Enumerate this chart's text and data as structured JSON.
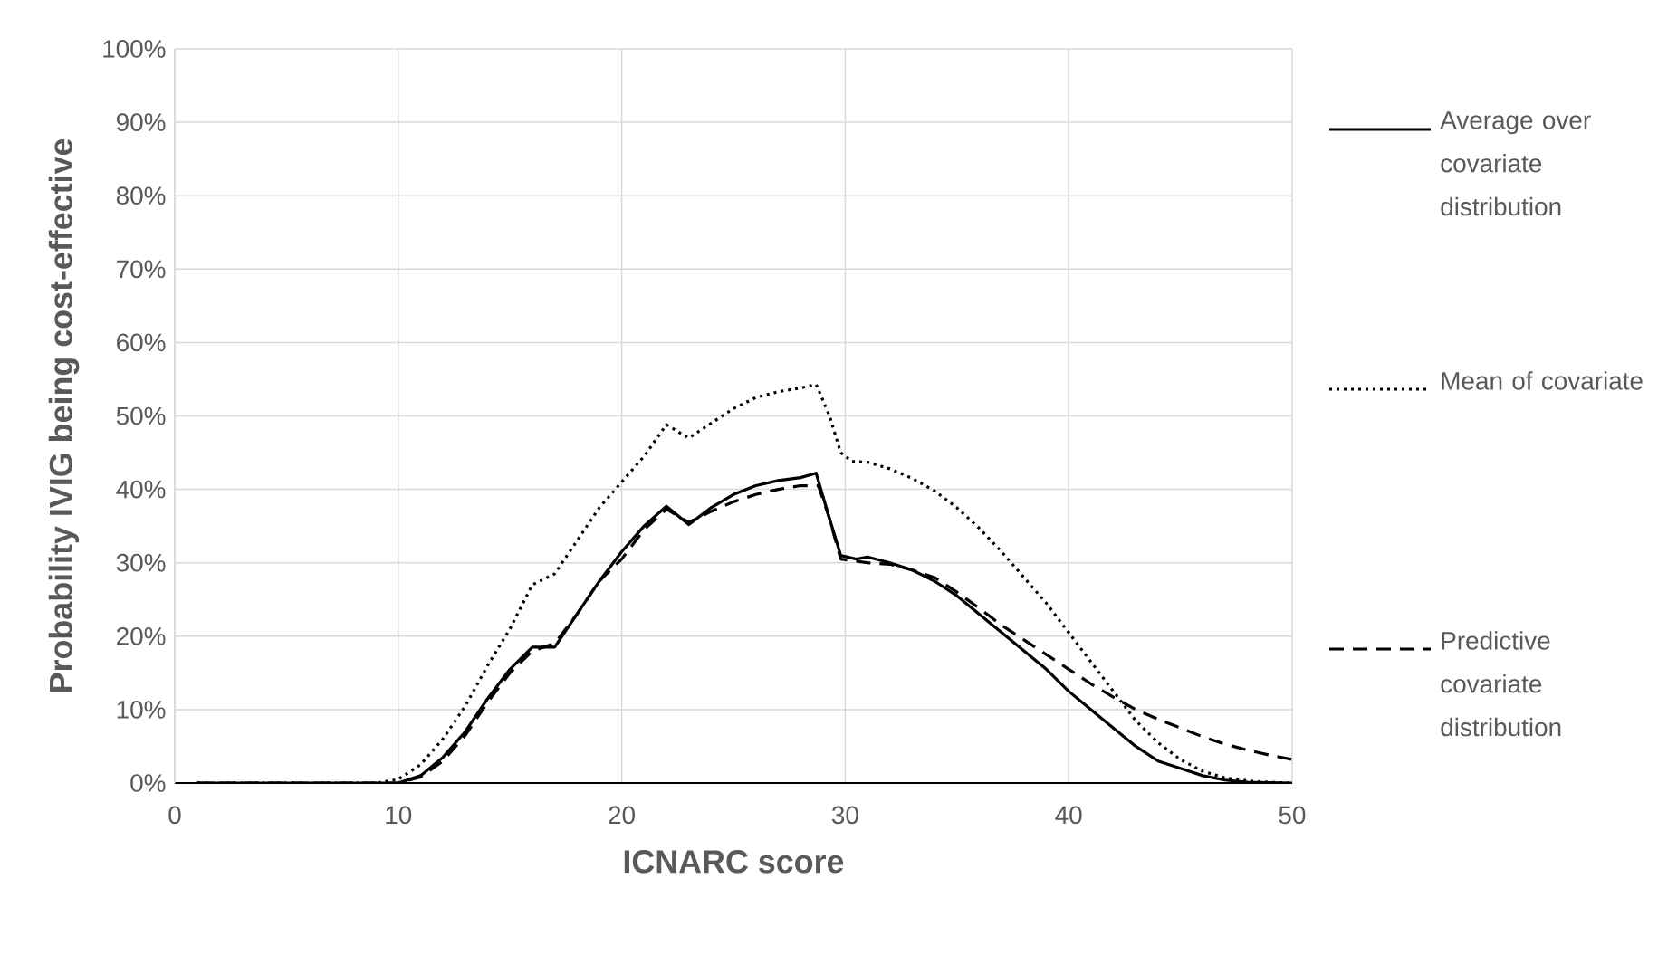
{
  "chart_data": {
    "type": "line",
    "xlabel": "ICNARC score",
    "ylabel": "Probability IVIG being cost-effective",
    "xlim": [
      0,
      50
    ],
    "xticks": [
      0,
      10,
      20,
      30,
      40,
      50
    ],
    "ylim": [
      0,
      100
    ],
    "yticks": [
      {
        "value": 0,
        "label": "0%"
      },
      {
        "value": 10,
        "label": "10%"
      },
      {
        "value": 20,
        "label": "20%"
      },
      {
        "value": 30,
        "label": "30%"
      },
      {
        "value": 40,
        "label": "40%"
      },
      {
        "value": 50,
        "label": "50%"
      },
      {
        "value": 60,
        "label": "60%"
      },
      {
        "value": 70,
        "label": "70%"
      },
      {
        "value": 80,
        "label": "80%"
      },
      {
        "value": 90,
        "label": "90%"
      },
      {
        "value": 100,
        "label": "100%"
      }
    ],
    "grid": true,
    "legend": "right",
    "marker": "none",
    "series": [
      {
        "name": "Average over covariate distribution",
        "color": "#000000",
        "line_style": "solid",
        "x": [
          1,
          9,
          10,
          11,
          12,
          13,
          14,
          15,
          16,
          17,
          18,
          19,
          20,
          21,
          22,
          23,
          24,
          25,
          26,
          27,
          28,
          28.7,
          29.3,
          29.8,
          30.5,
          31,
          32,
          33,
          34,
          35,
          36,
          37,
          38,
          39,
          40,
          41,
          42,
          43,
          44,
          45,
          46,
          47,
          48,
          50
        ],
        "values": [
          0,
          0,
          0,
          1,
          3.5,
          7,
          11.5,
          15.5,
          18.5,
          18.5,
          23,
          27.5,
          31.5,
          35,
          37.7,
          35.2,
          37.5,
          39.3,
          40.5,
          41.2,
          41.6,
          42.2,
          36,
          31,
          30.5,
          30.8,
          30,
          29,
          27.5,
          25.5,
          23,
          20.5,
          18,
          15.5,
          12.5,
          10,
          7.5,
          5,
          3,
          2,
          1,
          0.4,
          0.1,
          0
        ]
      },
      {
        "name": "Mean of covariate",
        "color": "#000000",
        "line_style": "dotted",
        "x": [
          1,
          9,
          10,
          11,
          12,
          13,
          14,
          15,
          16,
          17,
          18,
          19,
          20,
          21,
          22,
          23,
          24,
          25,
          26,
          27,
          28,
          28.7,
          29.3,
          29.8,
          30.3,
          31,
          32,
          33,
          34,
          35,
          36,
          37,
          38,
          39,
          40,
          41,
          42,
          43,
          44,
          45,
          46,
          47,
          48,
          49,
          50
        ],
        "values": [
          0,
          0,
          0.5,
          2.5,
          6,
          10.5,
          16,
          21,
          27,
          28.5,
          33,
          37.5,
          41,
          44.5,
          48.8,
          47,
          49,
          51,
          52.5,
          53.3,
          53.8,
          54.3,
          50,
          45,
          43.8,
          43.7,
          42.8,
          41.5,
          39.8,
          37.5,
          34.7,
          31.5,
          28,
          24.5,
          20.5,
          16.5,
          12.5,
          8.5,
          5.5,
          3.2,
          1.6,
          0.7,
          0.3,
          0.1,
          0
        ]
      },
      {
        "name": "Predictive covariate distribution",
        "color": "#000000",
        "line_style": "dashed",
        "x": [
          1,
          10,
          11,
          12,
          13,
          14,
          15,
          16,
          17,
          18,
          19,
          20,
          21,
          22,
          23,
          24,
          25,
          26,
          27,
          28,
          28.8,
          29.3,
          29.8,
          31,
          32,
          33,
          34,
          35,
          36,
          37,
          38,
          39,
          40,
          41,
          42,
          43,
          44,
          45,
          46,
          47,
          48,
          49,
          50
        ],
        "values": [
          0,
          0,
          0.8,
          3,
          6.5,
          11,
          15,
          18,
          19,
          23,
          27.5,
          30.5,
          34.5,
          37.3,
          35.5,
          37,
          38.3,
          39.3,
          40,
          40.5,
          40.5,
          36,
          30.5,
          30,
          29.8,
          29,
          28,
          26,
          23.8,
          21.5,
          19.5,
          17.5,
          15.5,
          13.5,
          11.7,
          10,
          8.7,
          7.5,
          6.3,
          5.3,
          4.5,
          3.8,
          3.2
        ]
      }
    ]
  }
}
